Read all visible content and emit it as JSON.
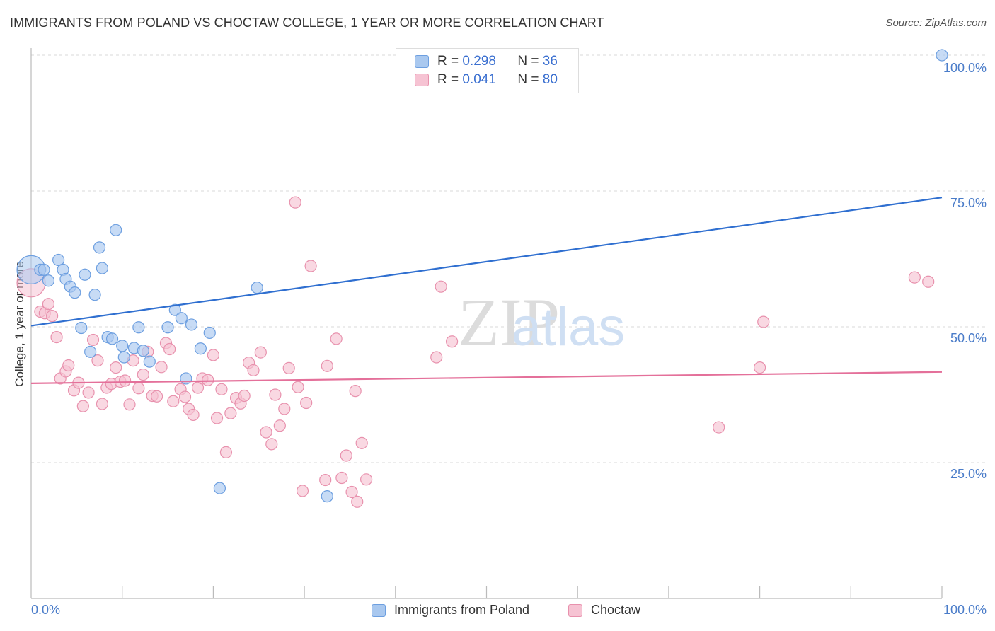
{
  "title": "IMMIGRANTS FROM POLAND VS CHOCTAW COLLEGE, 1 YEAR OR MORE CORRELATION CHART",
  "source": "Source: ZipAtlas.com",
  "watermark": {
    "zip": "ZIP",
    "atlas": "atlas"
  },
  "colors": {
    "blue_fill": "#a9c8ef",
    "blue_stroke": "#6d9fe0",
    "blue_line": "#2f6fd0",
    "pink_fill": "#f6c3d3",
    "pink_stroke": "#e891ad",
    "pink_line": "#e4709a",
    "tick_text": "#4a7cc9",
    "grid": "#d8d8d8"
  },
  "legend_top": {
    "rows": [
      {
        "r_label": "R = ",
        "r_value": "0.298",
        "n_label": "N = ",
        "n_value": "36"
      },
      {
        "r_label": "R = ",
        "r_value": "0.041",
        "n_label": "N = ",
        "n_value": "80"
      }
    ]
  },
  "chart_data": {
    "type": "scatter",
    "title": "IMMIGRANTS FROM POLAND VS CHOCTAW COLLEGE, 1 YEAR OR MORE CORRELATION CHART",
    "xlabel": "",
    "ylabel": "College, 1 year or more",
    "xlim": [
      0,
      100
    ],
    "ylim": [
      0,
      100
    ],
    "x_tick_labels": [
      "0.0%",
      "100.0%"
    ],
    "y_ticks": [
      25,
      50,
      75,
      100
    ],
    "y_tick_labels": [
      "25.0%",
      "50.0%",
      "75.0%",
      "100.0%"
    ],
    "legend_position": "bottom",
    "series": [
      {
        "name": "Immigrants from Poland",
        "r": 0.298,
        "n": 36,
        "trend": {
          "x0": 0,
          "y0": 50.2,
          "x1": 100,
          "y1": 73.8
        },
        "points": [
          {
            "x": 0.0,
            "y": 60.5,
            "big": true
          },
          {
            "x": 1.0,
            "y": 60.5
          },
          {
            "x": 1.4,
            "y": 60.5
          },
          {
            "x": 1.9,
            "y": 58.5
          },
          {
            "x": 3.0,
            "y": 62.3
          },
          {
            "x": 3.5,
            "y": 60.5
          },
          {
            "x": 3.8,
            "y": 58.8
          },
          {
            "x": 4.3,
            "y": 57.4
          },
          {
            "x": 4.8,
            "y": 56.3
          },
          {
            "x": 5.5,
            "y": 49.8
          },
          {
            "x": 5.9,
            "y": 59.6
          },
          {
            "x": 6.5,
            "y": 45.4
          },
          {
            "x": 7.0,
            "y": 55.9
          },
          {
            "x": 7.5,
            "y": 64.6
          },
          {
            "x": 7.8,
            "y": 60.8
          },
          {
            "x": 8.4,
            "y": 48.1
          },
          {
            "x": 8.9,
            "y": 47.8
          },
          {
            "x": 9.3,
            "y": 67.8
          },
          {
            "x": 10.0,
            "y": 46.5
          },
          {
            "x": 10.2,
            "y": 44.4
          },
          {
            "x": 11.3,
            "y": 46.1
          },
          {
            "x": 11.8,
            "y": 49.9
          },
          {
            "x": 12.3,
            "y": 45.6
          },
          {
            "x": 13.0,
            "y": 43.6
          },
          {
            "x": 15.0,
            "y": 49.9
          },
          {
            "x": 15.8,
            "y": 53.1
          },
          {
            "x": 16.5,
            "y": 51.6
          },
          {
            "x": 17.0,
            "y": 40.5
          },
          {
            "x": 17.6,
            "y": 50.4
          },
          {
            "x": 18.6,
            "y": 46.0
          },
          {
            "x": 19.6,
            "y": 48.9
          },
          {
            "x": 20.7,
            "y": 20.3
          },
          {
            "x": 24.8,
            "y": 57.2
          },
          {
            "x": 32.5,
            "y": 18.8
          },
          {
            "x": 100.0,
            "y": 100.0
          }
        ]
      },
      {
        "name": "Choctaw",
        "r": 0.041,
        "n": 80,
        "trend": {
          "x0": 0,
          "y0": 39.6,
          "x1": 100,
          "y1": 41.7
        },
        "points": [
          {
            "x": 0.0,
            "y": 58.1,
            "big": true
          },
          {
            "x": 1.0,
            "y": 52.8
          },
          {
            "x": 1.5,
            "y": 52.5
          },
          {
            "x": 1.9,
            "y": 54.2
          },
          {
            "x": 2.3,
            "y": 52.0
          },
          {
            "x": 2.8,
            "y": 48.1
          },
          {
            "x": 3.2,
            "y": 40.5
          },
          {
            "x": 3.8,
            "y": 41.8
          },
          {
            "x": 4.1,
            "y": 42.9
          },
          {
            "x": 4.7,
            "y": 38.3
          },
          {
            "x": 5.2,
            "y": 39.7
          },
          {
            "x": 5.7,
            "y": 35.4
          },
          {
            "x": 6.3,
            "y": 37.9
          },
          {
            "x": 6.8,
            "y": 47.6
          },
          {
            "x": 7.3,
            "y": 43.8
          },
          {
            "x": 7.8,
            "y": 35.8
          },
          {
            "x": 8.3,
            "y": 38.8
          },
          {
            "x": 8.8,
            "y": 39.5
          },
          {
            "x": 9.3,
            "y": 42.5
          },
          {
            "x": 9.8,
            "y": 39.9
          },
          {
            "x": 10.3,
            "y": 40.1
          },
          {
            "x": 10.8,
            "y": 35.7
          },
          {
            "x": 11.2,
            "y": 43.8
          },
          {
            "x": 11.8,
            "y": 38.7
          },
          {
            "x": 12.3,
            "y": 41.2
          },
          {
            "x": 12.8,
            "y": 45.4
          },
          {
            "x": 13.3,
            "y": 37.3
          },
          {
            "x": 13.8,
            "y": 37.2
          },
          {
            "x": 14.3,
            "y": 42.6
          },
          {
            "x": 14.8,
            "y": 47.0
          },
          {
            "x": 15.2,
            "y": 45.9
          },
          {
            "x": 15.6,
            "y": 36.3
          },
          {
            "x": 16.4,
            "y": 38.5
          },
          {
            "x": 16.9,
            "y": 37.1
          },
          {
            "x": 17.3,
            "y": 34.9
          },
          {
            "x": 17.8,
            "y": 33.8
          },
          {
            "x": 18.3,
            "y": 38.8
          },
          {
            "x": 18.8,
            "y": 40.5
          },
          {
            "x": 19.4,
            "y": 40.2
          },
          {
            "x": 20.0,
            "y": 44.8
          },
          {
            "x": 20.4,
            "y": 33.2
          },
          {
            "x": 20.9,
            "y": 38.5
          },
          {
            "x": 21.4,
            "y": 26.9
          },
          {
            "x": 21.9,
            "y": 34.1
          },
          {
            "x": 22.5,
            "y": 36.9
          },
          {
            "x": 23.0,
            "y": 35.9
          },
          {
            "x": 23.4,
            "y": 37.3
          },
          {
            "x": 23.9,
            "y": 43.4
          },
          {
            "x": 24.4,
            "y": 42.0
          },
          {
            "x": 25.2,
            "y": 45.3
          },
          {
            "x": 25.8,
            "y": 30.6
          },
          {
            "x": 26.4,
            "y": 28.4
          },
          {
            "x": 26.8,
            "y": 37.5
          },
          {
            "x": 27.3,
            "y": 31.8
          },
          {
            "x": 27.8,
            "y": 34.9
          },
          {
            "x": 28.3,
            "y": 42.4
          },
          {
            "x": 29.0,
            "y": 72.9
          },
          {
            "x": 29.3,
            "y": 38.9
          },
          {
            "x": 29.8,
            "y": 19.8
          },
          {
            "x": 30.2,
            "y": 36.0
          },
          {
            "x": 30.7,
            "y": 61.2
          },
          {
            "x": 32.3,
            "y": 21.8
          },
          {
            "x": 32.5,
            "y": 42.8
          },
          {
            "x": 33.5,
            "y": 47.8
          },
          {
            "x": 34.1,
            "y": 22.2
          },
          {
            "x": 34.6,
            "y": 26.3
          },
          {
            "x": 35.2,
            "y": 19.6
          },
          {
            "x": 35.6,
            "y": 38.2
          },
          {
            "x": 35.8,
            "y": 17.8
          },
          {
            "x": 36.3,
            "y": 28.6
          },
          {
            "x": 36.8,
            "y": 21.9
          },
          {
            "x": 44.5,
            "y": 44.4
          },
          {
            "x": 45.0,
            "y": 57.4
          },
          {
            "x": 46.2,
            "y": 47.3
          },
          {
            "x": 75.5,
            "y": 31.5
          },
          {
            "x": 80.0,
            "y": 42.5
          },
          {
            "x": 80.4,
            "y": 50.9
          },
          {
            "x": 97.0,
            "y": 59.1
          },
          {
            "x": 98.5,
            "y": 58.3
          }
        ]
      }
    ]
  }
}
